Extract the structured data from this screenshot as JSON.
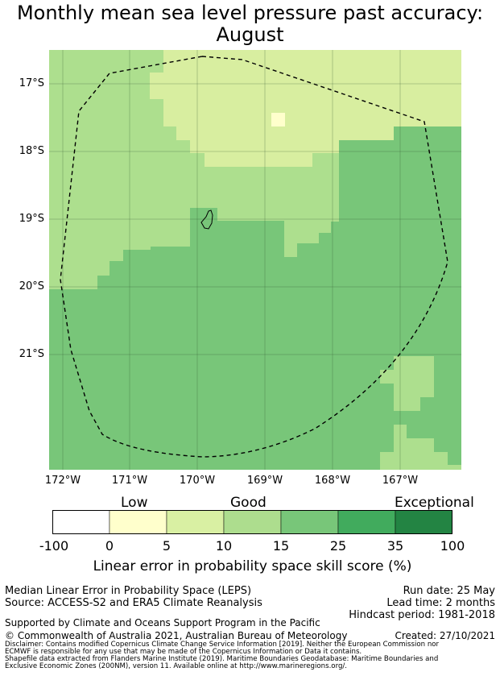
{
  "title_line1": "Monthly mean sea level pressure past accuracy:",
  "title_line2": "August",
  "map": {
    "y_ticks": [
      "17°S",
      "18°S",
      "19°S",
      "20°S",
      "21°S"
    ],
    "x_ticks": [
      "172°W",
      "171°W",
      "170°W",
      "169°W",
      "168°W",
      "167°W"
    ],
    "colors": {
      "c5_10": "#d8eea0",
      "c10_15": "#addf8e",
      "c15_25": "#78c679",
      "c0_5": "#ffffcc"
    },
    "grid": true
  },
  "colorbar": {
    "categories": [
      "Low",
      "Good",
      "Exceptional"
    ],
    "ticks": [
      "-100",
      "0",
      "5",
      "10",
      "15",
      "25",
      "35",
      "100"
    ],
    "colors": [
      "#ffffff",
      "#ffffcc",
      "#d9f0a3",
      "#addd8e",
      "#78c679",
      "#41ab5d",
      "#238443"
    ],
    "label": "Linear error in probability space skill score (%)"
  },
  "footer": {
    "left1": "Median Linear Error in Probability Space (LEPS)",
    "left2": "Source: ACCESS-S2 and ERA5 Climate Reanalysis",
    "right1": "Run date: 25 May",
    "right2": "Lead time: 2 months",
    "right3": "Hindcast period: 1981-2018",
    "supported": "Supported by Climate and Oceans Support Program in the Pacific",
    "copyright": "© Commonwealth of Australia 2021, Australian Bureau of Meteorology",
    "created": "Created: 27/10/2021",
    "disclaimer1": "Disclaimer: Contains modified Copernicus Climate Change Service Information [2019]. Neither the European Commission nor",
    "disclaimer2": "ECMWF is responsible for any use that may be made of the Copernicus Information or Data it contains.",
    "shapefile1": "Shapefile data extracted from Flanders Marine Institute (2019). Maritime Boundaries Geodatabase: Maritime Boundaries and",
    "shapefile2": "Exclusive Economic Zones (200NM), version 11. Available online at http://www.marineregions.org/."
  }
}
